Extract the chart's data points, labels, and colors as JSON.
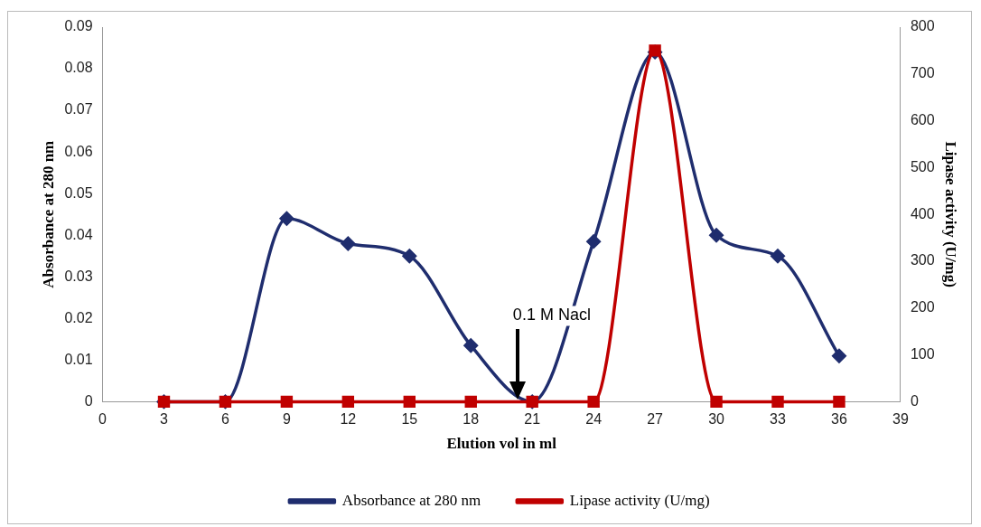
{
  "chart_data": {
    "type": "line",
    "xlabel": "Elution vol in ml",
    "ylabel": "Absorbance at 280 nm",
    "y2label": "Lipase activity (U/mg)",
    "x": [
      3,
      6,
      9,
      12,
      15,
      18,
      21,
      24,
      27,
      30,
      33,
      36
    ],
    "series": [
      {
        "name": "Absorbance at 280 nm",
        "color": "#1f2d6e",
        "marker": "diamond",
        "values": [
          0,
          0,
          0.044,
          0.038,
          0.035,
          0.0135,
          0,
          0.0385,
          0.084,
          0.04,
          0.035,
          0.011
        ]
      },
      {
        "name": "Lipase activity (U/mg)",
        "color": "#c00000",
        "marker": "square",
        "axis": "y2",
        "values": [
          0,
          0,
          0,
          0,
          0,
          0,
          0,
          0,
          750,
          0,
          0,
          0
        ]
      }
    ],
    "xlim": [
      0,
      39
    ],
    "xticks": [
      0,
      3,
      6,
      9,
      12,
      15,
      18,
      21,
      24,
      27,
      30,
      33,
      36,
      39
    ],
    "ylim": [
      0,
      0.09
    ],
    "yticks": [
      0,
      0.01,
      0.02,
      0.03,
      0.04,
      0.05,
      0.06,
      0.07,
      0.08,
      0.09
    ],
    "y2lim": [
      0,
      800
    ],
    "y2ticks": [
      0,
      100,
      200,
      300,
      400,
      500,
      600,
      700,
      800
    ],
    "annotations": [
      "0.1 M Nacl"
    ],
    "grid": false,
    "legend": "bottom"
  }
}
